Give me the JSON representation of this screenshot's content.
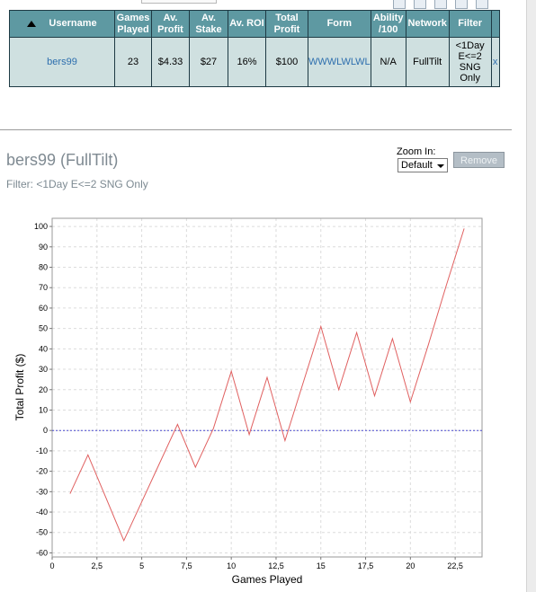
{
  "table": {
    "headers": {
      "username": "Username",
      "games_played": "Games Played",
      "av_profit": "Av. Profit",
      "av_stake": "Av. Stake",
      "av_roi": "Av. ROI",
      "total_profit": "Total Profit",
      "form": "Form",
      "ability": "Ability /100",
      "network": "Network",
      "filter": "Filter"
    },
    "row": {
      "username": "bers99",
      "games_played": "23",
      "av_profit": "$4.33",
      "av_stake": "$27",
      "av_roi": "16%",
      "total_profit": "$100",
      "form": "WWWLWLWL",
      "ability": "N/A",
      "network": "FullTilt",
      "filter": "<1Day E<=2 SNG Only",
      "remove": "x"
    }
  },
  "detail": {
    "title": "bers99 (FullTilt)",
    "filter_text": "Filter: <1Day E<=2 SNG Only",
    "zoom_label": "Zoom In:",
    "zoom_value": "Default",
    "remove_label": "Remove"
  },
  "icons": [
    "page-icon",
    "grid-icon",
    "document-icon",
    "refresh-icon",
    "window-icon"
  ],
  "chart_data": {
    "type": "line",
    "xlabel": "Games Played",
    "ylabel": "Total Profit ($)",
    "xlim": [
      0,
      24
    ],
    "ylim": [
      -62,
      104
    ],
    "xticks": [
      0,
      2.5,
      5,
      7.5,
      10,
      12.5,
      15,
      17.5,
      20,
      22.5
    ],
    "xtick_labels": [
      "0",
      "2,5",
      "5",
      "7,5",
      "10",
      "12,5",
      "15",
      "17,5",
      "20",
      "22,5"
    ],
    "yticks": [
      -60,
      -50,
      -40,
      -30,
      -20,
      -10,
      0,
      10,
      20,
      30,
      40,
      50,
      60,
      70,
      80,
      90,
      100
    ],
    "grid": true,
    "line_color": "#e06060",
    "zero_line_color": "#4a4ad0",
    "series": [
      {
        "x": [
          1,
          2,
          3,
          4,
          5,
          6,
          7,
          8,
          9,
          10,
          11,
          12,
          13,
          14,
          15,
          16,
          17,
          18,
          19,
          20,
          21,
          22,
          23
        ],
        "y": [
          -31,
          -12,
          -33,
          -54,
          -35,
          -16,
          3,
          -18,
          1,
          29,
          -2,
          26,
          -5,
          23,
          51,
          20,
          48,
          17,
          45,
          14,
          42,
          71,
          99
        ]
      }
    ]
  }
}
